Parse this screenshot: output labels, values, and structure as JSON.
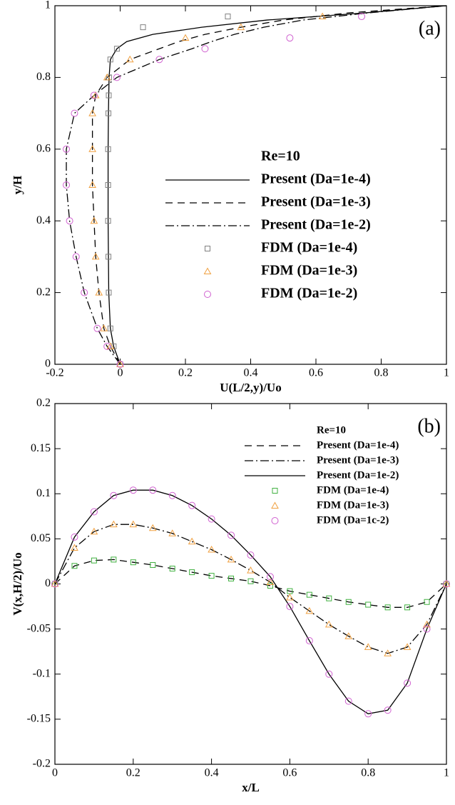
{
  "chart_data": [
    {
      "type": "line",
      "panel_label": "(a)",
      "xlabel": "U(L/2,y)/Uo",
      "ylabel": "y/H",
      "legend_title": "Re=10",
      "xlim": [
        -0.2,
        1
      ],
      "ylim": [
        0,
        1
      ],
      "xticks": [
        -0.2,
        0,
        0.2,
        0.4,
        0.6,
        0.8,
        1
      ],
      "yticks": [
        0,
        0.2,
        0.4,
        0.6,
        0.8,
        1
      ],
      "series": [
        {
          "name": "Present (Da=1e-4)",
          "color": "#000000",
          "dash": "solid",
          "x": [
            0,
            -0.02,
            -0.03,
            -0.035,
            -0.036,
            -0.037,
            -0.037,
            -0.037,
            -0.036,
            -0.035,
            -0.034,
            -0.03,
            -0.01,
            0.02,
            0.1,
            0.25,
            0.45,
            0.75,
            1
          ],
          "values": [
            0,
            0.05,
            0.1,
            0.2,
            0.3,
            0.4,
            0.5,
            0.6,
            0.7,
            0.75,
            0.8,
            0.85,
            0.88,
            0.9,
            0.92,
            0.94,
            0.96,
            0.98,
            1
          ]
        },
        {
          "name": "Present (Da=1e-3)",
          "color": "#000000",
          "dash": "dashed",
          "x": [
            0,
            -0.03,
            -0.05,
            -0.065,
            -0.075,
            -0.08,
            -0.085,
            -0.085,
            -0.085,
            -0.075,
            -0.04,
            0.03,
            0.12,
            0.18,
            0.26,
            0.37,
            0.5,
            0.7,
            1
          ],
          "values": [
            0,
            0.05,
            0.1,
            0.2,
            0.3,
            0.4,
            0.5,
            0.6,
            0.7,
            0.75,
            0.8,
            0.85,
            0.88,
            0.9,
            0.92,
            0.94,
            0.96,
            0.98,
            1
          ]
        },
        {
          "name": "Present (Da=1e-2)",
          "color": "#000000",
          "dash": "dashdot",
          "x": [
            0,
            -0.04,
            -0.07,
            -0.11,
            -0.135,
            -0.155,
            -0.165,
            -0.165,
            -0.14,
            -0.08,
            -0.01,
            0.12,
            0.22,
            0.28,
            0.35,
            0.44,
            0.56,
            0.76,
            1
          ],
          "values": [
            0,
            0.05,
            0.1,
            0.2,
            0.3,
            0.4,
            0.5,
            0.6,
            0.7,
            0.75,
            0.8,
            0.85,
            0.88,
            0.9,
            0.92,
            0.94,
            0.96,
            0.98,
            1
          ]
        },
        {
          "name": "FDM (Da=1e-4)",
          "color": "#808080",
          "marker": "square",
          "x": [
            0,
            -0.02,
            -0.03,
            -0.035,
            -0.036,
            -0.037,
            -0.037,
            -0.037,
            -0.036,
            -0.035,
            -0.034,
            -0.03,
            -0.01,
            0.07,
            0.33
          ],
          "values": [
            0,
            0.05,
            0.1,
            0.2,
            0.3,
            0.4,
            0.5,
            0.6,
            0.7,
            0.75,
            0.8,
            0.85,
            0.88,
            0.94,
            0.97
          ]
        },
        {
          "name": "FDM (Da=1e-3)",
          "color": "#f0a040",
          "marker": "triangle",
          "x": [
            0,
            -0.03,
            -0.05,
            -0.065,
            -0.075,
            -0.08,
            -0.085,
            -0.085,
            -0.085,
            -0.075,
            -0.04,
            0.03,
            0.2,
            0.37,
            0.62
          ],
          "values": [
            0,
            0.05,
            0.1,
            0.2,
            0.3,
            0.4,
            0.5,
            0.6,
            0.7,
            0.75,
            0.8,
            0.85,
            0.91,
            0.94,
            0.97
          ]
        },
        {
          "name": "FDM (Da=1e-2)",
          "color": "#d060d0",
          "marker": "circle",
          "x": [
            0,
            -0.04,
            -0.07,
            -0.11,
            -0.135,
            -0.155,
            -0.165,
            -0.165,
            -0.14,
            -0.08,
            -0.01,
            0.12,
            0.26,
            0.52,
            0.74
          ],
          "values": [
            0,
            0.05,
            0.1,
            0.2,
            0.3,
            0.4,
            0.5,
            0.6,
            0.7,
            0.75,
            0.8,
            0.85,
            0.88,
            0.91,
            0.97
          ]
        }
      ]
    },
    {
      "type": "line",
      "panel_label": "(b)",
      "xlabel": "x/L",
      "ylabel": "V(x,H/2)/Uo",
      "legend_title": "Re=10",
      "xlim": [
        0,
        1
      ],
      "ylim": [
        -0.2,
        0.2
      ],
      "xticks": [
        0,
        0.2,
        0.4,
        0.6,
        0.8,
        1
      ],
      "yticks": [
        -0.2,
        -0.15,
        -0.1,
        -0.05,
        0,
        0.05,
        0.1,
        0.15,
        0.2
      ],
      "x": [
        0,
        0.05,
        0.1,
        0.15,
        0.2,
        0.25,
        0.3,
        0.35,
        0.4,
        0.45,
        0.5,
        0.55,
        0.6,
        0.65,
        0.7,
        0.75,
        0.8,
        0.85,
        0.9,
        0.95,
        1
      ],
      "series": [
        {
          "name": "Present (Da=1e-4)",
          "color": "#000000",
          "dash": "dashed",
          "values": [
            0,
            0.02,
            0.026,
            0.027,
            0.024,
            0.021,
            0.017,
            0.013,
            0.009,
            0.006,
            0.003,
            -0.002,
            -0.008,
            -0.012,
            -0.016,
            -0.02,
            -0.023,
            -0.026,
            -0.026,
            -0.02,
            0
          ]
        },
        {
          "name": "Present (Da=1e-3)",
          "color": "#000000",
          "dash": "dashdot",
          "values": [
            0,
            0.04,
            0.058,
            0.066,
            0.066,
            0.062,
            0.056,
            0.047,
            0.038,
            0.027,
            0.015,
            0.002,
            -0.015,
            -0.03,
            -0.045,
            -0.058,
            -0.07,
            -0.077,
            -0.07,
            -0.045,
            0
          ]
        },
        {
          "name": "Present (Da=1e-2)",
          "color": "#000000",
          "dash": "solid",
          "values": [
            0,
            0.052,
            0.08,
            0.098,
            0.104,
            0.104,
            0.098,
            0.087,
            0.072,
            0.054,
            0.032,
            0.008,
            -0.025,
            -0.063,
            -0.1,
            -0.13,
            -0.144,
            -0.14,
            -0.11,
            -0.05,
            0
          ]
        },
        {
          "name": "FDM (Da=1e-4)",
          "color": "#40b040",
          "marker": "square",
          "values": [
            0,
            0.02,
            0.026,
            0.027,
            0.024,
            0.021,
            0.017,
            0.013,
            0.009,
            0.006,
            0.003,
            -0.002,
            -0.008,
            -0.012,
            -0.016,
            -0.02,
            -0.023,
            -0.026,
            -0.026,
            -0.02,
            0
          ]
        },
        {
          "name": "FDM (Da=1e-3)",
          "color": "#f0a040",
          "marker": "triangle",
          "values": [
            0,
            0.04,
            0.058,
            0.066,
            0.066,
            0.062,
            0.056,
            0.047,
            0.038,
            0.027,
            0.015,
            0.002,
            -0.015,
            -0.03,
            -0.045,
            -0.058,
            -0.07,
            -0.077,
            -0.07,
            -0.045,
            0
          ]
        },
        {
          "name": "FDM (Da=1c-2)",
          "color": "#d060d0",
          "marker": "circle",
          "values": [
            0,
            0.052,
            0.08,
            0.098,
            0.104,
            0.104,
            0.098,
            0.087,
            0.072,
            0.054,
            0.032,
            0.008,
            -0.025,
            -0.063,
            -0.1,
            -0.13,
            -0.144,
            -0.14,
            -0.11,
            -0.05,
            0
          ]
        }
      ]
    }
  ]
}
